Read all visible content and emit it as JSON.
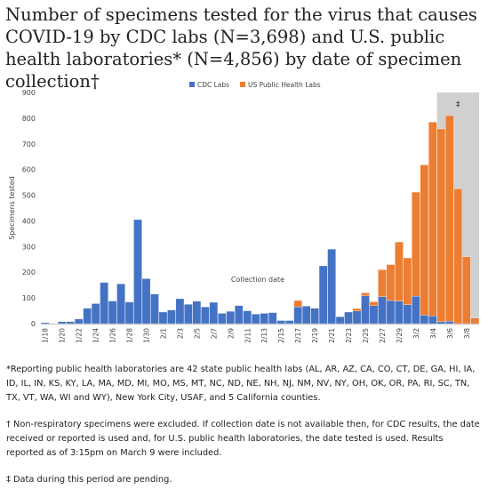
{
  "title": "Number of specimens tested for the virus that causes COVID-19 by CDC labs (N=3,698) and U.S. public health laboratories* (N=4,856) by date of specimen collection†",
  "footnotes": {
    "f1": "*Reporting public health laboratories are 42 state public health labs (AL, AR, AZ, CA, CO, CT, DE, GA, HI, IA, ID, IL, IN, KS, KY, LA, MA, MD, MI, MO, MS, MT, NC, ND, NE, NH, NJ, NM, NV, NY, OH, OK, OR, PA, RI, SC, TN, TX, VT, WA, WI and WY), New York City, USAF, and 5 California counties.",
    "f2": "† Non-respiratory specimens were excluded. If collection date is not available then, for CDC results, the date received or reported is used and, for U.S. public health laboratories, the date tested is used. Results reported as of 3:15pm on March 9 were included.",
    "f3": "‡ Data during this period are pending."
  },
  "chart_data": {
    "type": "bar",
    "stacked": true,
    "categories": [
      "1/18",
      "1/19",
      "1/20",
      "1/21",
      "1/22",
      "1/23",
      "1/24",
      "1/25",
      "1/26",
      "1/27",
      "1/28",
      "1/29",
      "1/30",
      "1/31",
      "2/1",
      "2/2",
      "2/3",
      "2/4",
      "2/5",
      "2/6",
      "2/7",
      "2/8",
      "2/9",
      "2/10",
      "2/11",
      "2/12",
      "2/13",
      "2/14",
      "2/15",
      "2/16",
      "2/17",
      "2/18",
      "2/19",
      "2/20",
      "2/21",
      "2/22",
      "2/23",
      "2/24",
      "2/25",
      "2/26",
      "2/27",
      "2/28",
      "2/29",
      "3/1",
      "3/2",
      "3/3",
      "3/4",
      "3/5",
      "3/6",
      "3/7",
      "3/8",
      "3/9"
    ],
    "tick_labels": [
      "1/18",
      "1/20",
      "1/22",
      "1/24",
      "1/26",
      "1/28",
      "1/30",
      "2/1",
      "2/3",
      "2/5",
      "2/7",
      "2/9",
      "2/11",
      "2/13",
      "2/15",
      "2/17",
      "2/19",
      "2/21",
      "2/23",
      "2/25",
      "2/27",
      "2/29",
      "3/2",
      "3/4",
      "3/6",
      "3/8"
    ],
    "series": [
      {
        "name": "CDC Labs",
        "color": "#4472c4",
        "values": [
          4,
          0,
          8,
          8,
          18,
          60,
          78,
          160,
          88,
          155,
          84,
          405,
          175,
          115,
          45,
          53,
          97,
          75,
          87,
          65,
          83,
          40,
          48,
          70,
          50,
          37,
          40,
          43,
          12,
          12,
          65,
          68,
          60,
          225,
          290,
          27,
          45,
          49,
          108,
          70,
          105,
          90,
          88,
          74,
          107,
          33,
          30,
          8,
          10,
          0,
          0,
          0
        ]
      },
      {
        "name": "US Public Health Labs",
        "color": "#ed7d31",
        "values": [
          0,
          0,
          0,
          0,
          0,
          0,
          0,
          0,
          0,
          0,
          0,
          0,
          0,
          0,
          0,
          0,
          0,
          0,
          0,
          0,
          0,
          0,
          0,
          0,
          0,
          0,
          0,
          0,
          0,
          0,
          25,
          0,
          0,
          0,
          0,
          0,
          0,
          10,
          12,
          15,
          105,
          140,
          230,
          182,
          405,
          585,
          755,
          750,
          800,
          525,
          260,
          22
        ]
      }
    ],
    "ylabel": "Specimens tested",
    "xlabel": "Collection date",
    "ylim": [
      0,
      900
    ],
    "yticks": [
      0,
      100,
      200,
      300,
      400,
      500,
      600,
      700,
      800,
      900
    ],
    "legend_position": "top-center",
    "pending_region": {
      "from": "3/5",
      "to": "3/9",
      "label": "‡",
      "color": "#d0d0d0"
    },
    "grid": false
  }
}
